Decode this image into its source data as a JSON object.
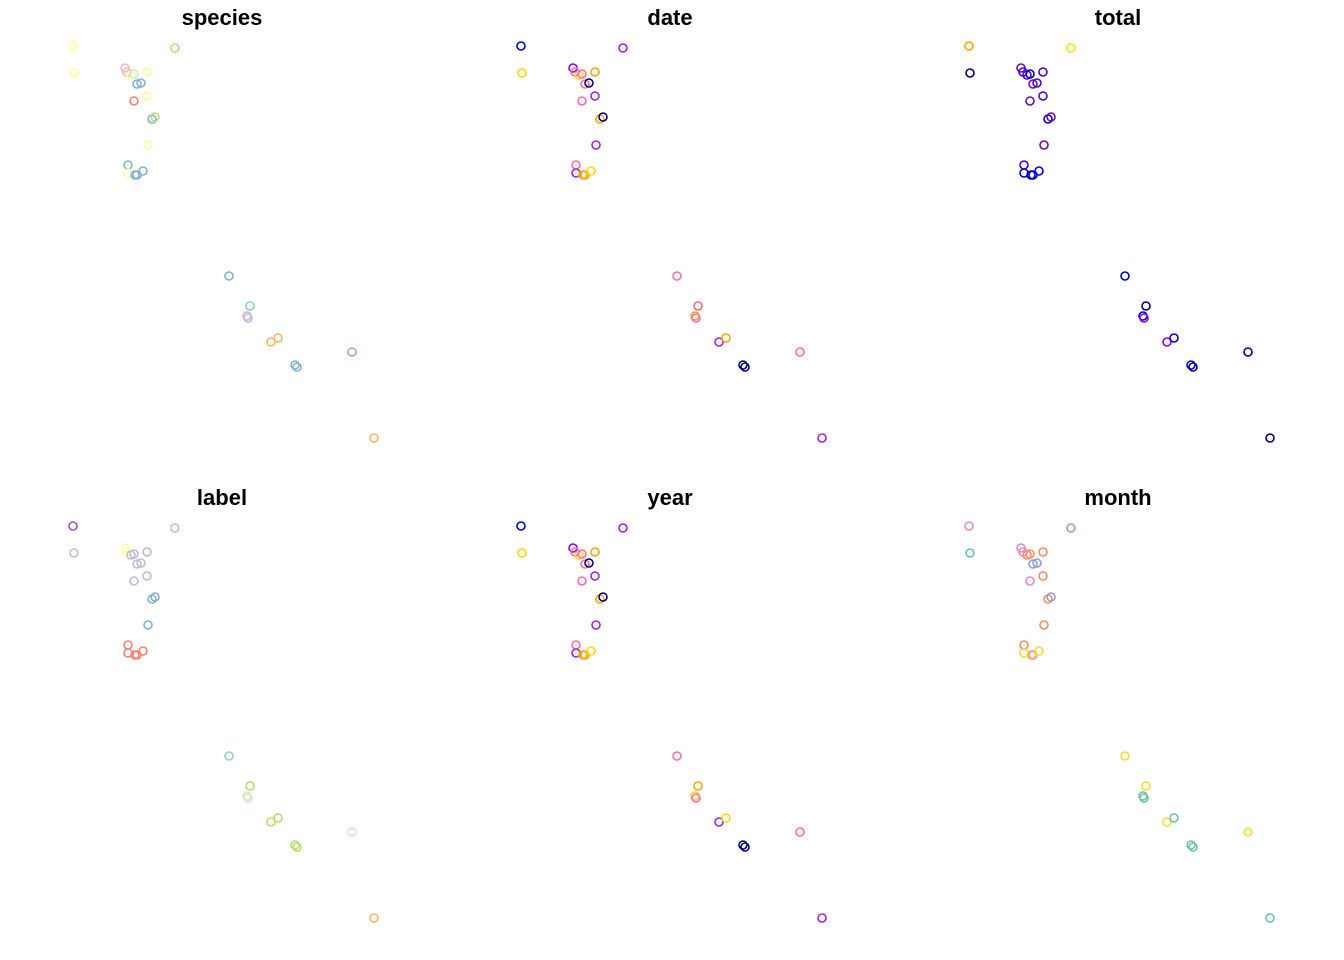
{
  "figure": {
    "background": "#ffffff",
    "marker": "open-circle"
  },
  "chart_data": [
    {
      "type": "scatter",
      "title": "species",
      "grid": false,
      "axes": false,
      "colors": [
        "#ffff99",
        "#ffff99",
        "#b2df8a",
        "#fbb4c4",
        "#fbb4c4",
        "#ffff99",
        "#ccebc5",
        "#ffff99",
        "#80b1d3",
        "#80b1d3",
        "#fb8072",
        "#ffff99",
        "#80b1d3",
        "#b3de69",
        "#ffff99",
        "#80b1d3",
        "#ffff99",
        "#80b1d3",
        "#80b1d3",
        "#80b1d3",
        "#80b1d3",
        "#8dd3c7",
        "#bebada",
        "#bebada",
        "#fdb462",
        "#fdb462",
        "#80b1d3",
        "#80b1d3",
        "#80b1d3",
        "#fdb462"
      ]
    },
    {
      "type": "scatter",
      "title": "date",
      "grid": false,
      "axes": false,
      "colors": [
        "#0000cd",
        "#ffd700",
        "#a020f0",
        "#8b00ff",
        "#ff69b4",
        "#ffd700",
        "#ff69b4",
        "#ffa500",
        "#ff69b4",
        "#000080",
        "#ff69b4",
        "#a020f0",
        "#ffa500",
        "#000080",
        "#a020f0",
        "#ff69b4",
        "#a020f0",
        "#ffa500",
        "#ffa500",
        "#ffd700",
        "#ff69b4",
        "#ff6666",
        "#ffa500",
        "#ff69b4",
        "#a020f0",
        "#ffa500",
        "#000080",
        "#000080",
        "#ff69b4",
        "#a020f0"
      ]
    },
    {
      "type": "scatter",
      "title": "total",
      "grid": false,
      "axes": false,
      "colors": [
        "#ffa500",
        "#000080",
        "#ffe600",
        "#6a0dad",
        "#4b00e0",
        "#4b00e0",
        "#0000cd",
        "#4b00e0",
        "#6a0dad",
        "#4b00e0",
        "#6a0dad",
        "#4b00e0",
        "#0000cd",
        "#6a0dad",
        "#6a0dad",
        "#4b00e0",
        "#0000cd",
        "#0000cd",
        "#0000cd",
        "#0000cd",
        "#0000cd",
        "#00008b",
        "#0000cd",
        "#8b00ff",
        "#8b00ff",
        "#0000cd",
        "#0000cd",
        "#00008b",
        "#00008b",
        "#000080"
      ]
    },
    {
      "type": "scatter",
      "title": "label",
      "grid": false,
      "axes": false,
      "colors": [
        "#9955bb",
        "#bebada",
        "#bebada",
        "#ffff99",
        "#ffff99",
        "#bebada",
        "#bebada",
        "#bebada",
        "#bebada",
        "#bebada",
        "#bebada",
        "#bebada",
        "#80b1d3",
        "#80b1d3",
        "#80b1d3",
        "#fb8072",
        "#fb8072",
        "#fb8072",
        "#fb8072",
        "#fb8072",
        "#8dd3c7",
        "#b3de69",
        "#ccebc5",
        "#ccebc5",
        "#b3de69",
        "#b3de69",
        "#b3de69",
        "#b3de69",
        "#fccde5",
        "#fdb462"
      ]
    },
    {
      "type": "scatter",
      "title": "year",
      "grid": false,
      "axes": false,
      "colors": [
        "#0000cd",
        "#ffd700",
        "#a020f0",
        "#8b00ff",
        "#ff69b4",
        "#ffd700",
        "#ff69b4",
        "#ffa500",
        "#ff69b4",
        "#000080",
        "#ff69b4",
        "#a020f0",
        "#ffa500",
        "#000080",
        "#a020f0",
        "#ff69b4",
        "#a020f0",
        "#ffa500",
        "#ffa500",
        "#ffd700",
        "#ff69b4",
        "#ffa500",
        "#ffd700",
        "#ff69b4",
        "#a020f0",
        "#ffd700",
        "#000080",
        "#000080",
        "#ff69b4",
        "#a020f0"
      ]
    },
    {
      "type": "scatter",
      "title": "month",
      "grid": false,
      "axes": false,
      "colors": [
        "#e78ac3",
        "#66c2a5",
        "#8da0cb",
        "#e78ac3",
        "#e78ac3",
        "#fc8d62",
        "#fc8d62",
        "#fc8d62",
        "#8da0cb",
        "#8da0cb",
        "#e78ac3",
        "#fc8d62",
        "#fc8d62",
        "#8da0cb",
        "#fc8d62",
        "#fc8d62",
        "#ffd92f",
        "#ffd92f",
        "#e78ac3",
        "#ffd92f",
        "#ffd92f",
        "#ffd92f",
        "#66c2a5",
        "#66c2a5",
        "#ffd92f",
        "#66c2a5",
        "#66c2a5",
        "#66c2a5",
        "#ffd92f",
        "#66c2a5"
      ]
    }
  ]
}
